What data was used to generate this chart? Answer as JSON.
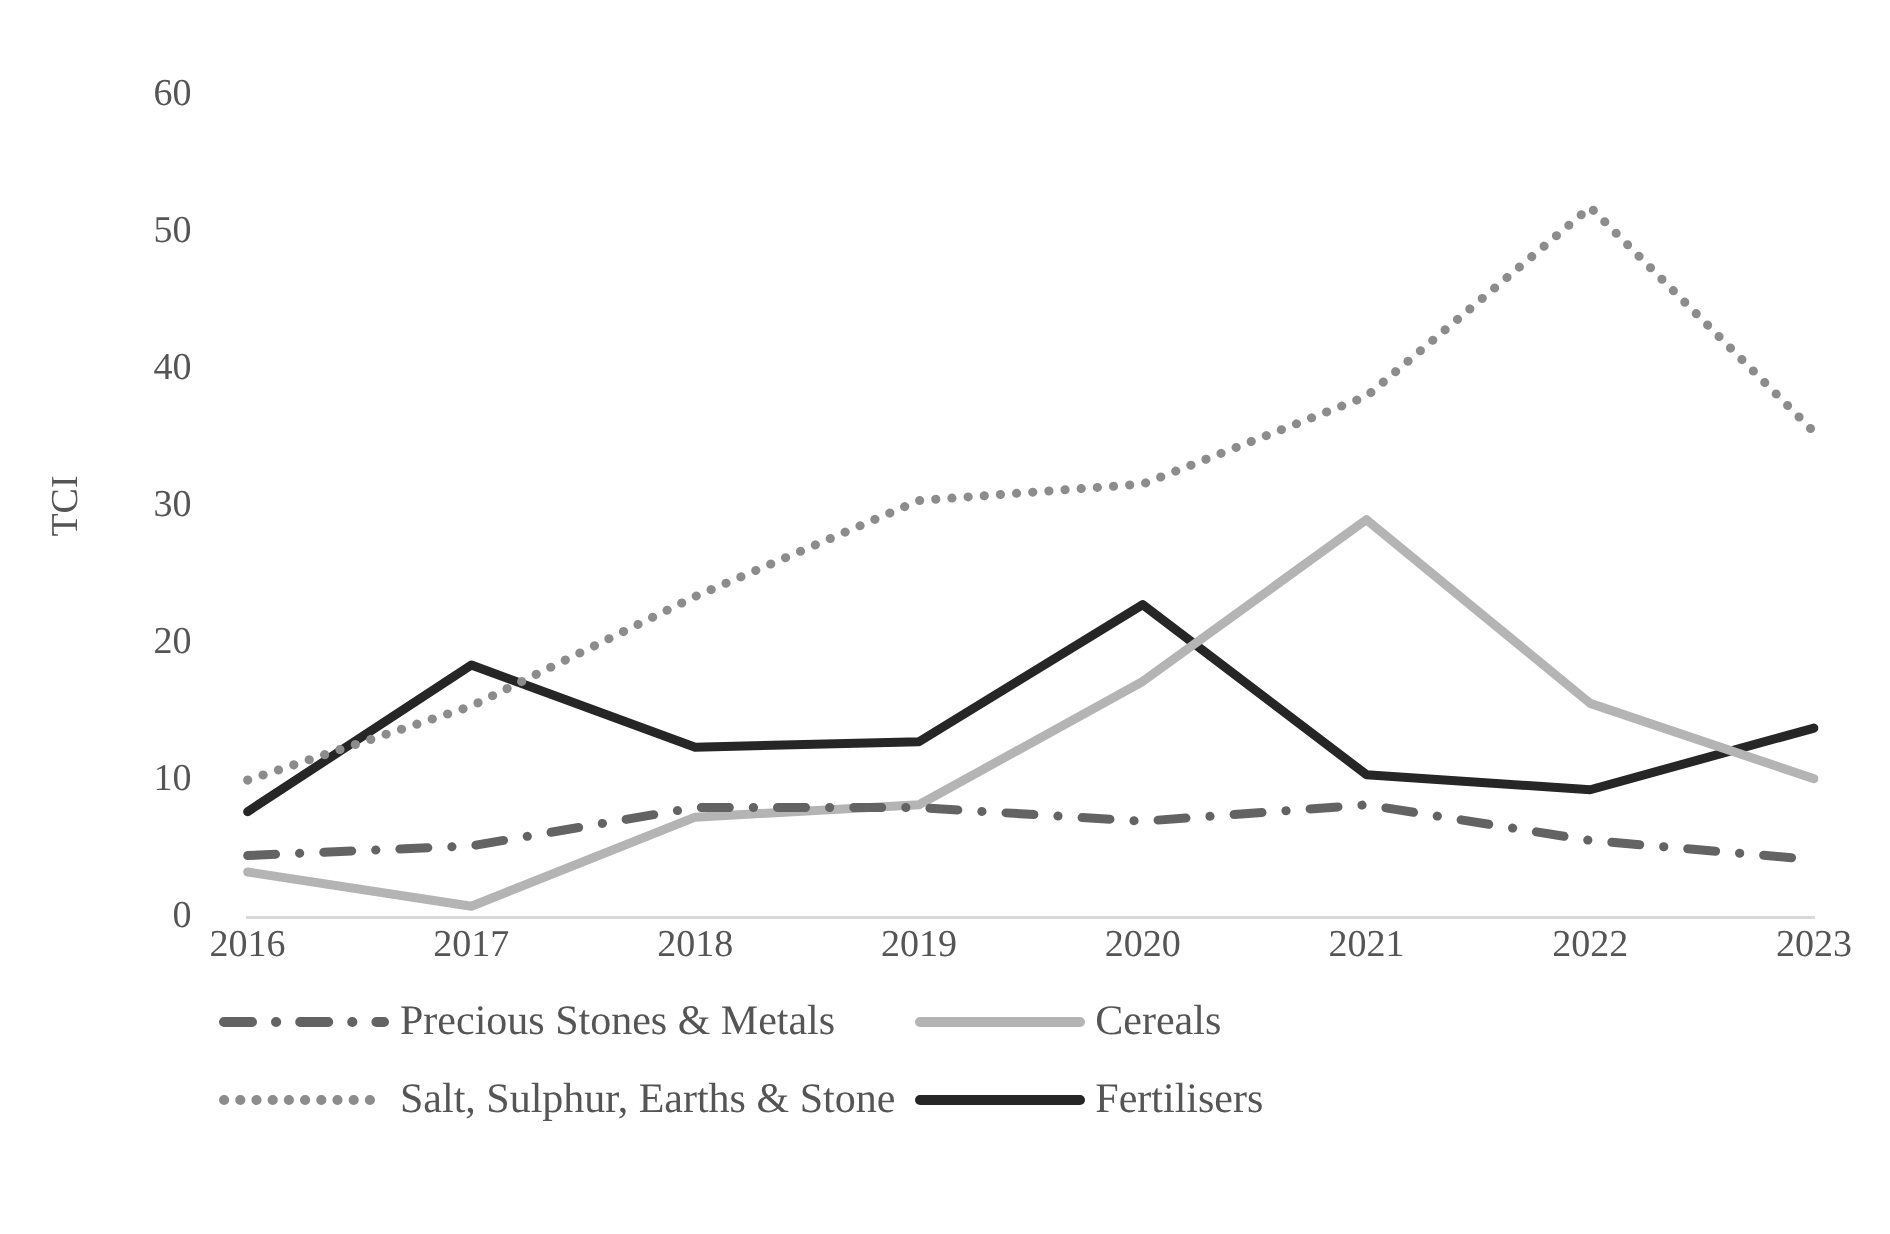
{
  "chart_data": {
    "type": "line",
    "ylabel": "TCI",
    "categories": [
      "2016",
      "2017",
      "2018",
      "2019",
      "2020",
      "2021",
      "2022",
      "2023"
    ],
    "ylim": [
      0,
      60
    ],
    "yticks": [
      0,
      10,
      20,
      30,
      40,
      50,
      60
    ],
    "grid": false,
    "legend": "bottom",
    "marker": "none",
    "series": [
      {
        "name": "Precious Stones & Metals",
        "color": "#636363",
        "line_style": "dashed",
        "values": [
          4.5,
          5.2,
          8.0,
          8.0,
          7.0,
          8.2,
          5.6,
          4.2
        ]
      },
      {
        "name": "Cereals",
        "color": "#b4b4b4",
        "line_style": "solid",
        "values": [
          3.3,
          0.8,
          7.3,
          8.2,
          17.2,
          29.0,
          15.6,
          10.1
        ]
      },
      {
        "name": "Salt, Sulphur, Earths & Stone",
        "color": "#8c8c8c",
        "line_style": "dotted",
        "values": [
          10.0,
          15.4,
          23.4,
          30.4,
          31.6,
          38.0,
          51.8,
          35.4
        ]
      },
      {
        "name": "Fertilisers",
        "color": "#262626",
        "line_style": "solid",
        "values": [
          7.7,
          18.4,
          12.4,
          12.8,
          22.8,
          10.4,
          9.3,
          13.8
        ]
      }
    ]
  }
}
